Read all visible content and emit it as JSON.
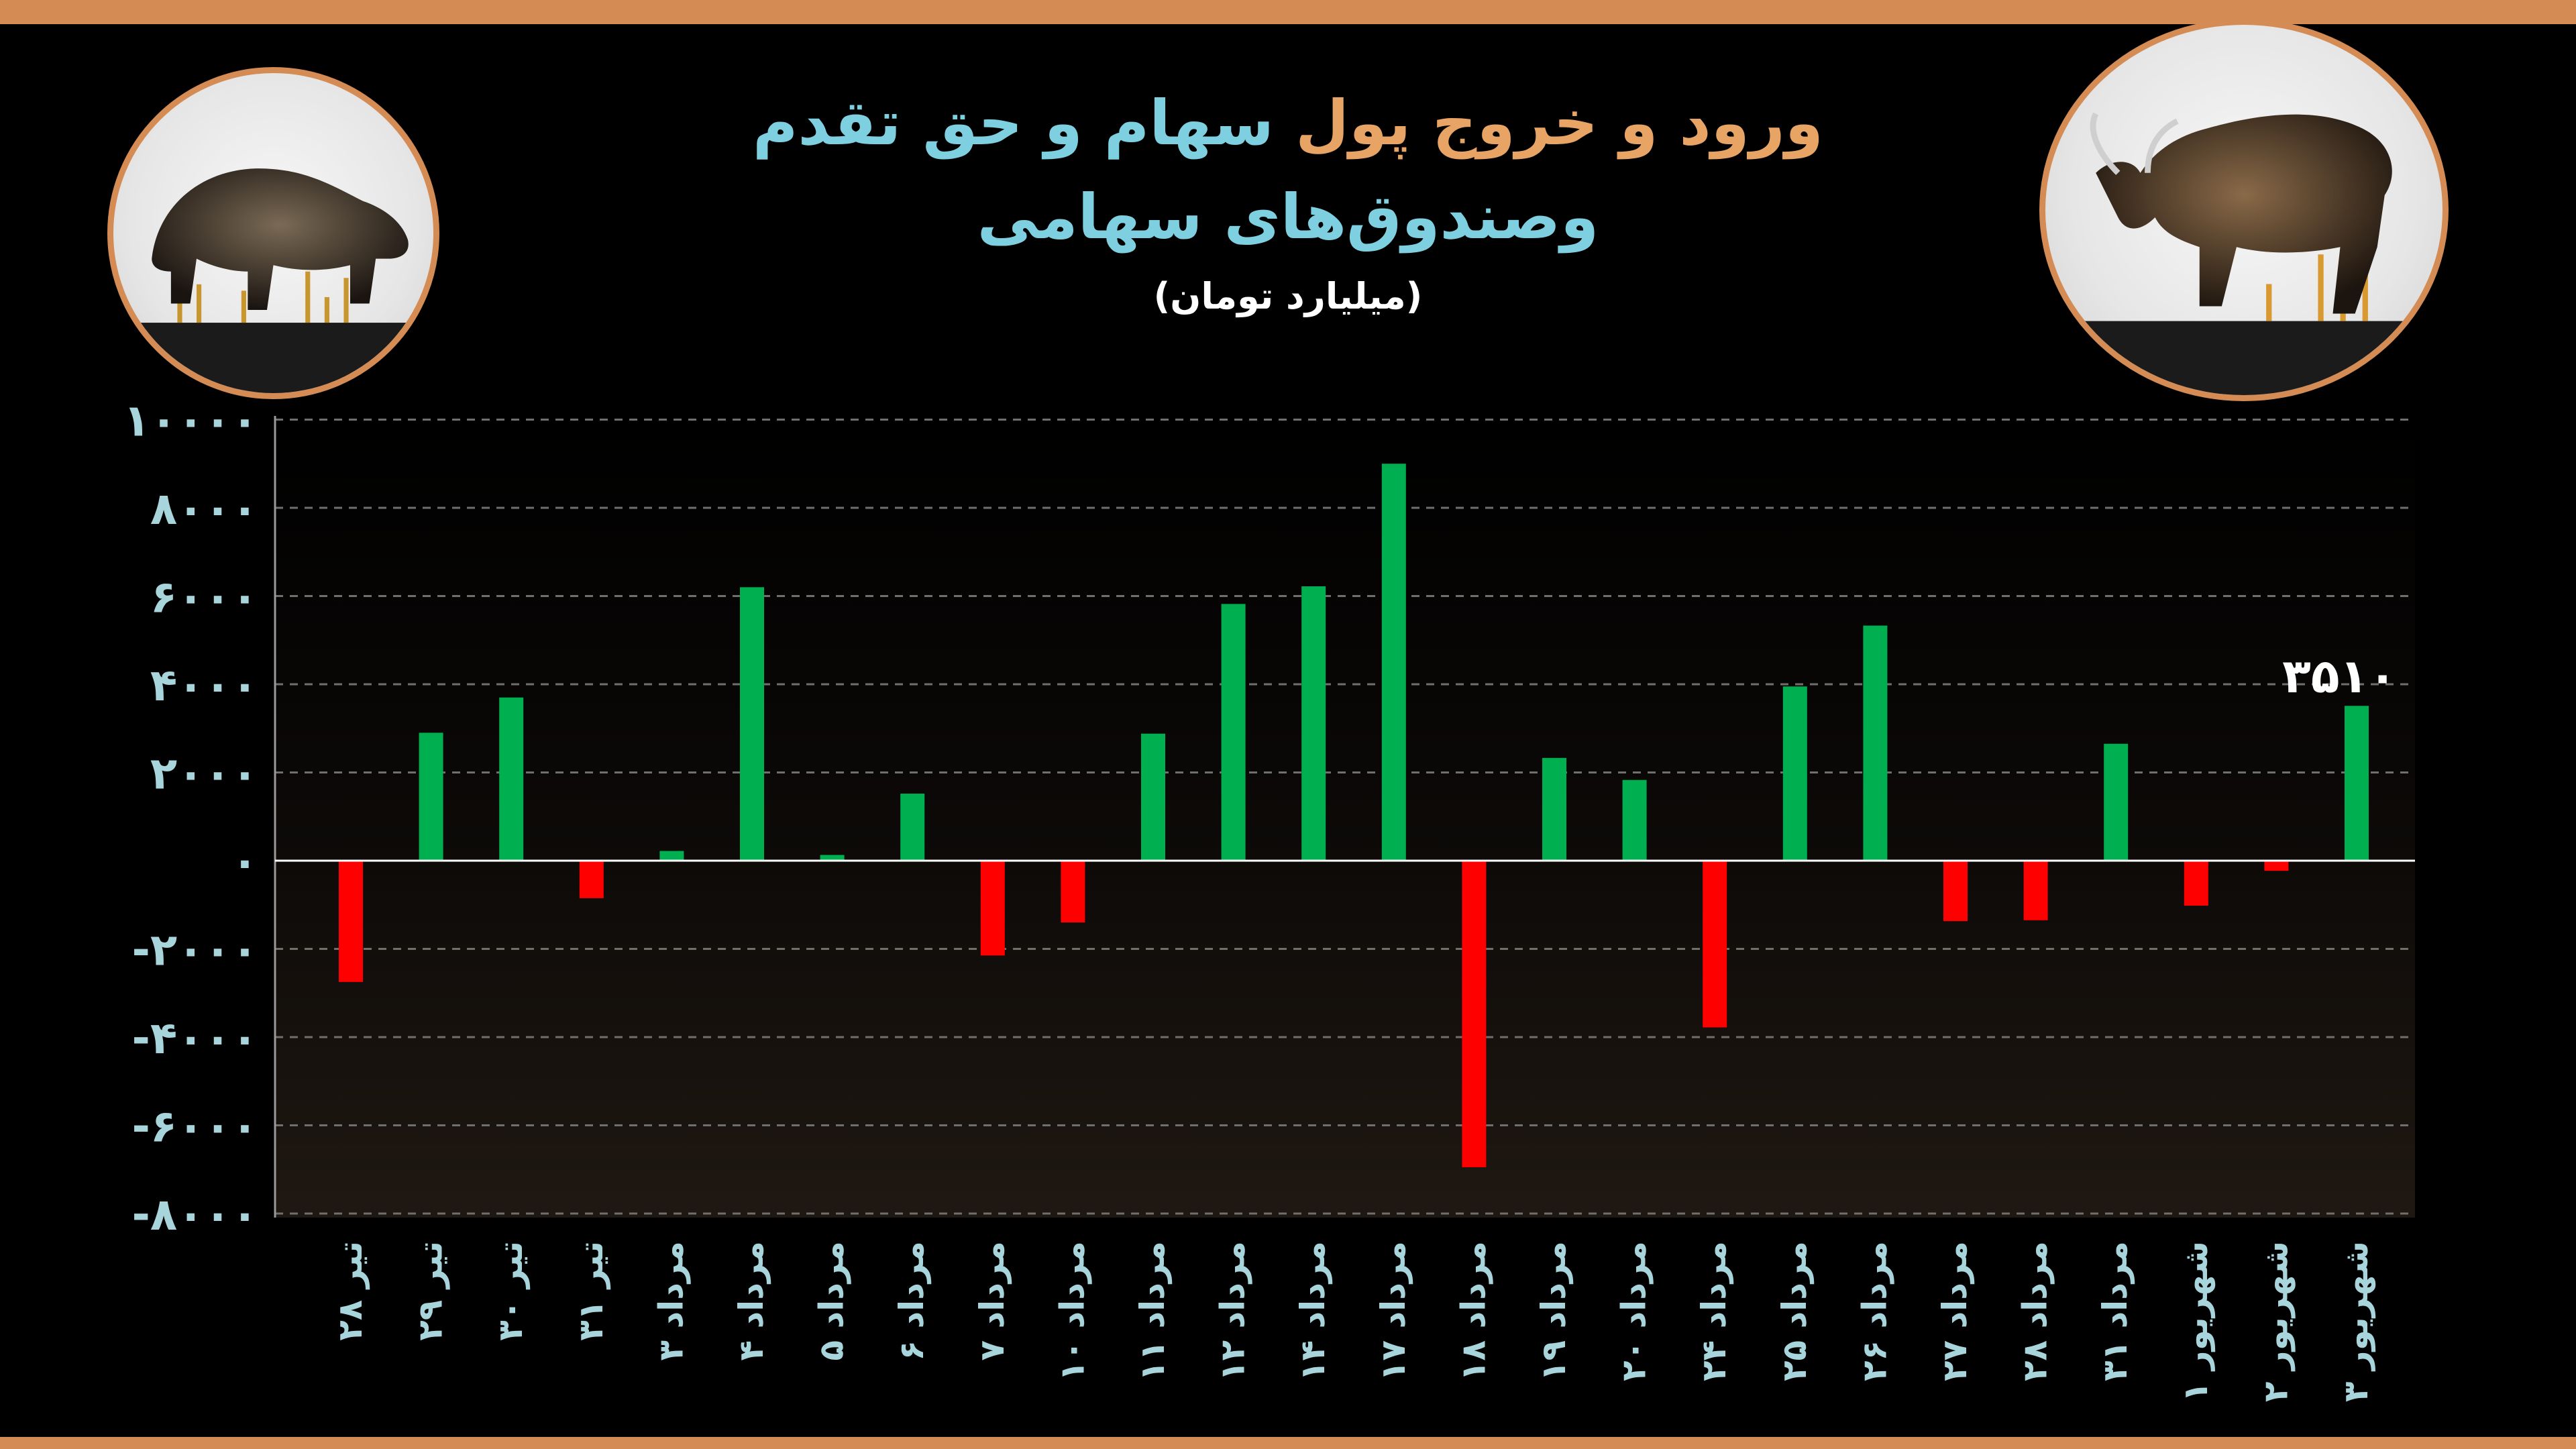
{
  "title": {
    "line1_part1": "ورود و خروج پول",
    "line1_part2": "سهام و حق تقدم",
    "line2": "وصندوق‌های سهامی",
    "unit": "(میلیارد تومان)"
  },
  "colors": {
    "frame": "#d48c54",
    "title_orange": "#e8a465",
    "title_blue": "#7ed0e0",
    "positive": "#00b050",
    "negative": "#ff0000",
    "axis_text": "#a8d5dc"
  },
  "images": {
    "bear": "bear-statue-illustration",
    "bull": "bull-statue-illustration"
  },
  "chart_data": {
    "type": "bar",
    "categories": [
      "تیر ۲۸",
      "تیر ۲۹",
      "تیر ۳۰",
      "تیر ۳۱",
      "مرداد ۳",
      "مرداد ۴",
      "مرداد ۵",
      "مرداد ۶",
      "مرداد ۷",
      "مرداد ۱۰",
      "مرداد ۱۱",
      "مرداد ۱۲",
      "مرداد ۱۴",
      "مرداد ۱۷",
      "مرداد ۱۸",
      "مرداد ۱۹",
      "مرداد ۲۰",
      "مرداد ۲۴",
      "مرداد ۲۵",
      "مرداد ۲۶",
      "مرداد ۲۷",
      "مرداد ۲۸",
      "مرداد ۳۱",
      "شهریور ۱",
      "شهریور ۲",
      "شهریور ۳"
    ],
    "values": [
      -2750,
      2900,
      3700,
      -850,
      220,
      6200,
      130,
      1520,
      -2150,
      -1400,
      2880,
      5820,
      6220,
      9000,
      -6950,
      2330,
      1830,
      -3780,
      3950,
      5330,
      -1370,
      -1350,
      2650,
      -1020,
      -230,
      3510
    ],
    "ylim": [
      -8000,
      10000
    ],
    "yticks": [
      "۱۰۰۰۰",
      "۸۰۰۰",
      "۶۰۰۰",
      "۴۰۰۰",
      "۲۰۰۰",
      "۰",
      "-۲۰۰۰",
      "-۴۰۰۰",
      "-۶۰۰۰",
      "-۸۰۰۰"
    ],
    "ytick_values": [
      10000,
      8000,
      6000,
      4000,
      2000,
      0,
      -2000,
      -4000,
      -6000,
      -8000
    ],
    "annotation": {
      "index": 25,
      "text": "۳۵۱۰"
    },
    "grid": true
  }
}
